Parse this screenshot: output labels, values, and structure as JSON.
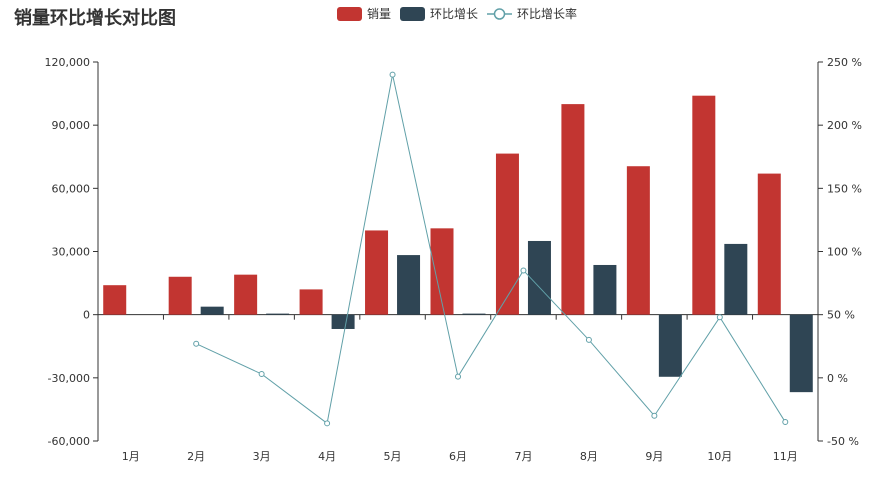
{
  "chart_data": {
    "type": "bar",
    "title": "销量环比增长对比图",
    "categories": [
      "1月",
      "2月",
      "3月",
      "4月",
      "5月",
      "6月",
      "7月",
      "8月",
      "9月",
      "10月",
      "11月"
    ],
    "series": [
      {
        "name": "销量",
        "type": "bar",
        "axis": "left",
        "color": "#c23531",
        "values": [
          14000,
          18000,
          19000,
          12000,
          40000,
          41000,
          76500,
          100000,
          70500,
          104000,
          67000
        ]
      },
      {
        "name": "环比增长",
        "type": "bar",
        "axis": "left",
        "color": "#2f4554",
        "values": [
          null,
          3800,
          500,
          -6800,
          28300,
          500,
          35000,
          23600,
          -29500,
          33600,
          -36800
        ]
      },
      {
        "name": "环比增长率",
        "type": "line",
        "axis": "right",
        "color": "#61a0a8",
        "values": [
          null,
          27,
          3,
          -36,
          240,
          1,
          85,
          30,
          -30,
          48,
          -35
        ]
      }
    ],
    "y_left": {
      "min": -60000,
      "max": 120000,
      "ticks": [
        -60000,
        -30000,
        0,
        30000,
        60000,
        90000,
        120000
      ],
      "tick_labels": [
        "-60,000",
        "-30,000",
        "0",
        "30,000",
        "60,000",
        "90,000",
        "120,000"
      ]
    },
    "y_right": {
      "min": -50,
      "max": 250,
      "ticks": [
        -50,
        0,
        50,
        100,
        150,
        200,
        250
      ],
      "tick_labels": [
        "-50 %",
        "0 %",
        "50 %",
        "100 %",
        "150 %",
        "200 %",
        "250 %"
      ]
    },
    "legend_position": "top-center",
    "grid": false
  }
}
